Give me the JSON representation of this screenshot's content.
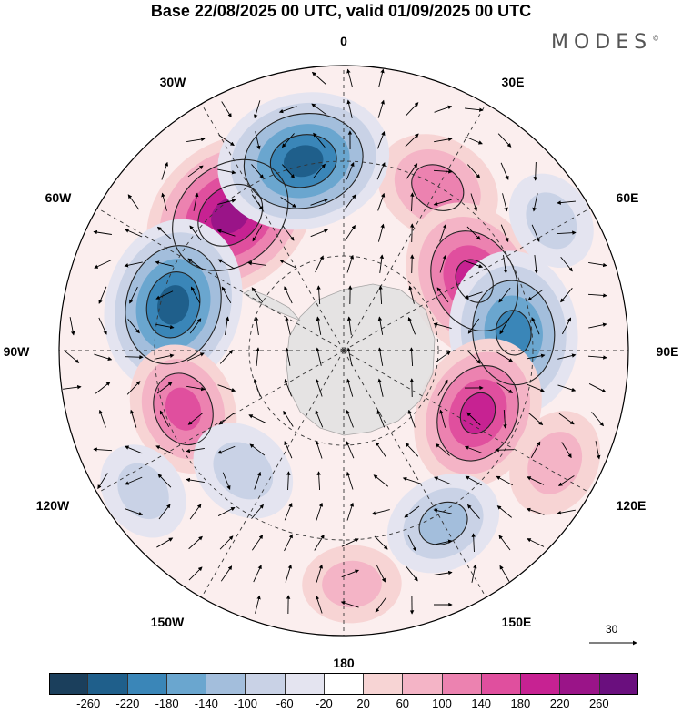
{
  "title": "Base 22/08/2025 00 UTC, valid 01/09/2025 00 UTC",
  "brand": "MODES",
  "brand_mark": "©",
  "longitude_labels": {
    "lon_0": "0",
    "lon_30e": "30E",
    "lon_60e": "60E",
    "lon_90e": "90E",
    "lon_120e": "120E",
    "lon_150e": "150E",
    "lon_180": "180",
    "lon_150w": "150W",
    "lon_120w": "120W",
    "lon_90w": "90W",
    "lon_60w": "60W",
    "lon_30w": "30W"
  },
  "reference_vector": {
    "label": "30"
  },
  "colorbar": {
    "colors": [
      "#1b3f5c",
      "#1f5f8b",
      "#3a86b8",
      "#6aa6cf",
      "#a3bedc",
      "#c9d2e6",
      "#e4e4f0",
      "#ffffff",
      "#f7d4d4",
      "#f4b4c6",
      "#ec82b0",
      "#e04f9e",
      "#c72292",
      "#9a1488",
      "#6a0f7e"
    ],
    "ticks": [
      "-260",
      "-220",
      "-180",
      "-140",
      "-100",
      "-60",
      "-20",
      "20",
      "60",
      "100",
      "140",
      "180",
      "220",
      "260"
    ]
  },
  "anomaly_centers": [
    {
      "name": "pos-30w-60w",
      "lon": -40,
      "lat_r": 0.62,
      "value": 260
    },
    {
      "name": "pos-30e",
      "lon": 30,
      "lat_r": 0.66,
      "value": 140
    },
    {
      "name": "neg-0-30w",
      "lon": -12,
      "lat_r": 0.68,
      "value": -240
    },
    {
      "name": "neg-60w-90w",
      "lon": -75,
      "lat_r": 0.62,
      "value": -240
    },
    {
      "name": "pos-60e-90e",
      "lon": 62,
      "lat_r": 0.52,
      "value": 220
    },
    {
      "name": "neg-90e",
      "lon": 84,
      "lat_r": 0.6,
      "value": -220
    },
    {
      "name": "neg-60e",
      "lon": 58,
      "lat_r": 0.86,
      "value": -80
    },
    {
      "name": "pos-90w-120w",
      "lon": -110,
      "lat_r": 0.6,
      "value": 150
    },
    {
      "name": "pos-120e",
      "lon": 115,
      "lat_r": 0.52,
      "value": 200
    },
    {
      "name": "pos-120e-outer",
      "lon": 118,
      "lat_r": 0.84,
      "value": 100
    },
    {
      "name": "neg-120w",
      "lon": -140,
      "lat_r": 0.55,
      "value": -100
    },
    {
      "name": "neg-150e",
      "lon": 150,
      "lat_r": 0.7,
      "value": -120
    },
    {
      "name": "pos-180",
      "lon": 178,
      "lat_r": 0.82,
      "value": 80
    },
    {
      "name": "neg-120w-outer",
      "lon": -125,
      "lat_r": 0.86,
      "value": -80
    }
  ]
}
